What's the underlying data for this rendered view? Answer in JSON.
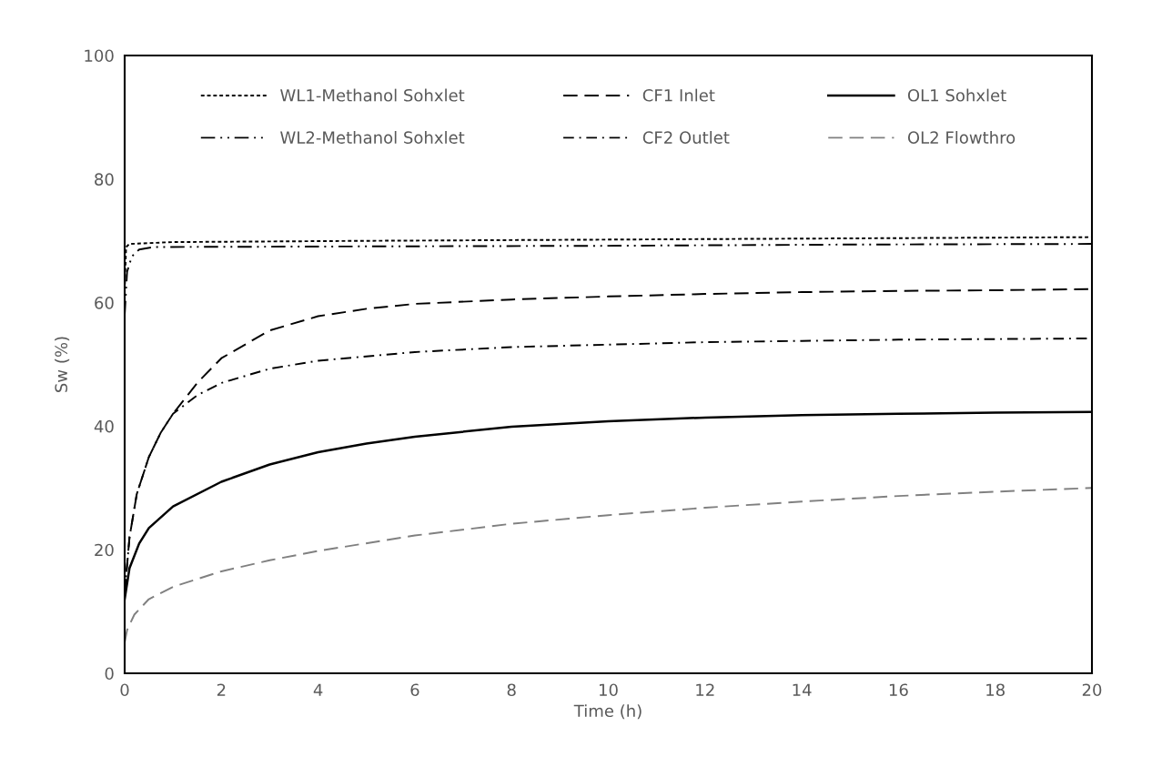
{
  "chart_data": {
    "type": "line",
    "xlabel": "Time (h)",
    "ylabel": "Sw (%)",
    "xlim": [
      0,
      20
    ],
    "xticks": [
      0,
      2,
      4,
      6,
      8,
      10,
      12,
      14,
      16,
      18,
      20
    ],
    "ylim": [
      0,
      100
    ],
    "yticks": [
      0,
      20,
      40,
      60,
      80,
      100
    ],
    "grid": false,
    "legend": "top",
    "marker": "none",
    "series": [
      {
        "name": "WL1-Methanol Sohxlet",
        "color": "#000000",
        "line_style": "dotted",
        "x": [
          0,
          0.03,
          0.1,
          1,
          5,
          10,
          15,
          20
        ],
        "values": [
          62,
          69,
          69.5,
          69.8,
          70,
          70.2,
          70.4,
          70.6
        ]
      },
      {
        "name": "CF1 Inlet",
        "color": "#000000",
        "line_style": "dashed",
        "x": [
          0,
          0.1,
          0.25,
          0.5,
          0.75,
          1,
          1.5,
          2,
          3,
          4,
          5,
          6,
          8,
          10,
          12,
          14,
          16,
          18,
          20
        ],
        "values": [
          13,
          22,
          29,
          35,
          39,
          42,
          47,
          51,
          55.5,
          57.8,
          59,
          59.8,
          60.5,
          61,
          61.4,
          61.7,
          61.9,
          62,
          62.2
        ]
      },
      {
        "name": "OL1 Sohxlet",
        "color": "#000000",
        "line_style": "solid",
        "x": [
          0,
          0.1,
          0.3,
          0.5,
          1,
          2,
          3,
          4,
          5,
          6,
          8,
          10,
          12,
          14,
          16,
          18,
          20
        ],
        "values": [
          12,
          17,
          21,
          23.5,
          27,
          31,
          33.8,
          35.8,
          37.2,
          38.3,
          39.9,
          40.8,
          41.4,
          41.8,
          42,
          42.2,
          42.3
        ]
      },
      {
        "name": "WL2-Methanol Sohxlet",
        "color": "#000000",
        "line_style": "dashdotdot",
        "x": [
          0,
          0.05,
          0.15,
          0.3,
          0.6,
          5,
          10,
          15,
          20
        ],
        "values": [
          58,
          65,
          67.5,
          68.6,
          69,
          69.1,
          69.2,
          69.4,
          69.5
        ]
      },
      {
        "name": "CF2 Outlet",
        "color": "#000000",
        "line_style": "dashdot",
        "x": [
          0,
          0.1,
          0.25,
          0.5,
          0.75,
          1,
          1.5,
          2,
          3,
          4,
          6,
          8,
          10,
          12,
          14,
          16,
          20
        ],
        "values": [
          13,
          22,
          29,
          35,
          39,
          42,
          45,
          47,
          49.3,
          50.6,
          52,
          52.8,
          53.2,
          53.6,
          53.8,
          54,
          54.2
        ]
      },
      {
        "name": "OL2 Flowthro",
        "color": "#808080",
        "line_style": "dashed",
        "x": [
          0,
          0.05,
          0.2,
          0.5,
          1,
          2,
          3,
          4,
          6,
          8,
          10,
          12,
          14,
          16,
          18,
          20
        ],
        "values": [
          5,
          7,
          9.5,
          12,
          14,
          16.5,
          18.3,
          19.8,
          22.3,
          24.2,
          25.6,
          26.8,
          27.8,
          28.7,
          29.4,
          30
        ]
      }
    ]
  }
}
